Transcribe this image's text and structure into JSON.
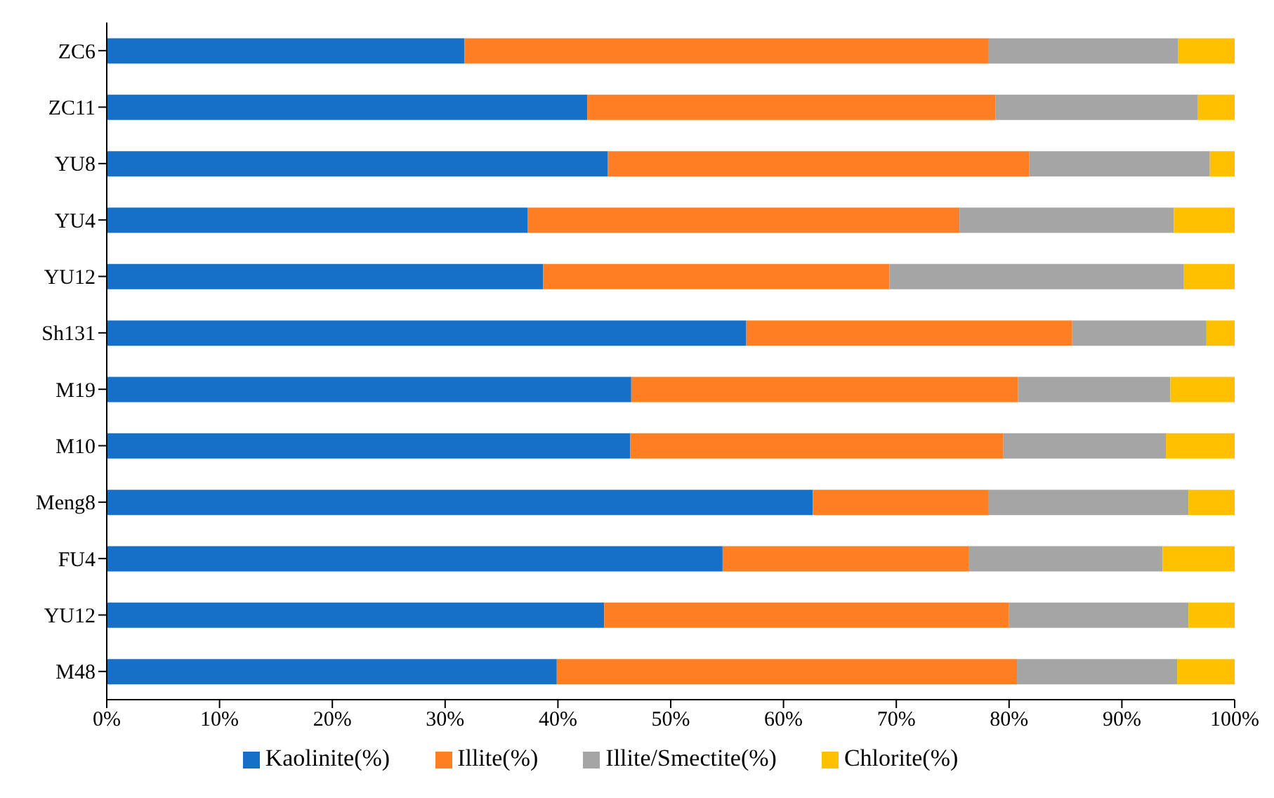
{
  "chart_data": {
    "type": "bar",
    "orientation": "horizontal",
    "stacked": true,
    "categories": [
      "ZC6",
      "ZC11",
      "YU8",
      "YU4",
      "YU12",
      "Sh131",
      "M19",
      "M10",
      "Meng8",
      "FU4",
      "YU12",
      "M48"
    ],
    "series": [
      {
        "name": "Kaolinite(%)",
        "color": "#1670c8",
        "values": [
          31.7,
          42.6,
          44.4,
          37.3,
          38.7,
          56.7,
          46.5,
          46.4,
          62.6,
          54.6,
          44.1,
          39.9
        ]
      },
      {
        "name": "Illite(%)",
        "color": "#ff7f22",
        "values": [
          46.5,
          36.2,
          37.4,
          38.3,
          30.7,
          28.9,
          34.3,
          33.1,
          15.6,
          21.8,
          35.9,
          40.8
        ]
      },
      {
        "name": "Illite/Smectite(%)",
        "color": "#a5a5a5",
        "values": [
          16.8,
          17.9,
          16.0,
          19.0,
          26.1,
          11.9,
          13.5,
          14.4,
          17.7,
          17.2,
          15.9,
          14.2
        ]
      },
      {
        "name": "Chlorite(%)",
        "color": "#ffc000",
        "values": [
          5.0,
          3.3,
          2.2,
          5.4,
          4.5,
          2.5,
          5.7,
          6.1,
          4.1,
          6.4,
          4.1,
          5.1
        ]
      }
    ],
    "xlim": [
      0,
      100
    ],
    "xticks": [
      {
        "value": 0,
        "label": "0%"
      },
      {
        "value": 10,
        "label": "10%"
      },
      {
        "value": 20,
        "label": "20%"
      },
      {
        "value": 30,
        "label": "30%"
      },
      {
        "value": 40,
        "label": "40%"
      },
      {
        "value": 50,
        "label": "50%"
      },
      {
        "value": 60,
        "label": "60%"
      },
      {
        "value": 70,
        "label": "70%"
      },
      {
        "value": 80,
        "label": "80%"
      },
      {
        "value": 90,
        "label": "90%"
      },
      {
        "value": 100,
        "label": "100%"
      }
    ],
    "grid": false,
    "legend": "bottom"
  }
}
